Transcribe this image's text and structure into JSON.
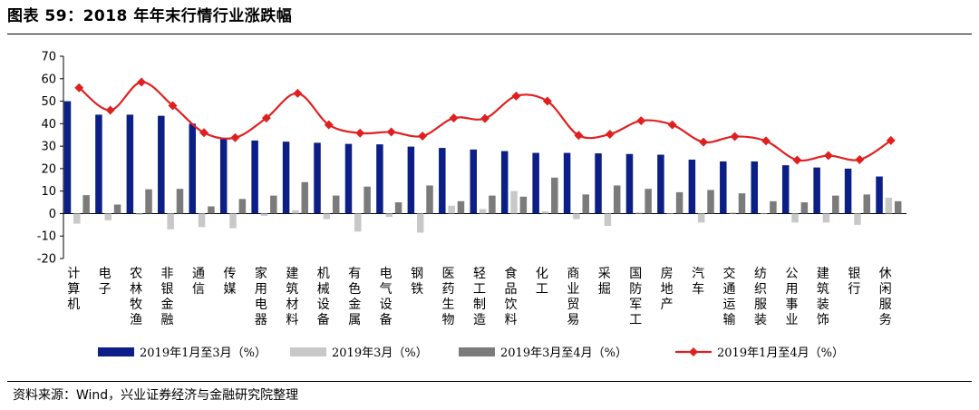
{
  "title": "图表 59：2018 年年末行情行业涨跌幅",
  "source": "资料来源：Wind，兴业证券经济与金融研究院整理",
  "colors": {
    "series1": "#0b1f86",
    "series2": "#c8c8c8",
    "series3": "#7b7b7b",
    "line": "#e02020",
    "axis": "#000000"
  },
  "chart_data": {
    "type": "bar",
    "ylim": [
      -20,
      70
    ],
    "yticks": [
      -20,
      -10,
      0,
      10,
      20,
      30,
      40,
      50,
      60,
      70
    ],
    "categories": [
      "计算机",
      "电子",
      "农林牧渔",
      "非银金融",
      "通信",
      "传媒",
      "家用电器",
      "建筑材料",
      "机械设备",
      "有色金属",
      "电气设备",
      "钢铁",
      "医药生物",
      "轻工制造",
      "食品饮料",
      "化工",
      "商业贸易",
      "采掘",
      "国防军工",
      "房地产",
      "汽车",
      "交通运输",
      "纺织服装",
      "公用事业",
      "建筑装饰",
      "银行",
      "休闲服务"
    ],
    "series": [
      {
        "name": "2019年1月至3月（%）",
        "kind": "bar",
        "color_key": "series1",
        "values": [
          50.0,
          44.0,
          44.0,
          43.5,
          40.0,
          33.5,
          32.5,
          32.0,
          31.5,
          31.0,
          30.8,
          29.8,
          29.2,
          28.5,
          27.8,
          27.0,
          27.0,
          26.8,
          26.5,
          26.2,
          24.0,
          23.2,
          23.2,
          21.5,
          20.5,
          20.0,
          16.5
        ]
      },
      {
        "name": "2019年3月（%）",
        "kind": "bar",
        "color_key": "series2",
        "values": [
          -4.5,
          -3.0,
          -0.5,
          -7.0,
          -6.0,
          -6.5,
          -1.0,
          1.5,
          -2.5,
          -8.0,
          -1.5,
          -8.5,
          3.5,
          2.0,
          10.0,
          1.0,
          -2.5,
          -5.5,
          0.5,
          0.0,
          -4.0,
          0.5,
          0.0,
          -4.0,
          -4.0,
          -5.0,
          7.0
        ]
      },
      {
        "name": "2019年3月至4月（%）",
        "kind": "bar",
        "color_key": "series3",
        "values": [
          8.2,
          4.0,
          10.8,
          11.0,
          3.2,
          6.5,
          8.0,
          14.0,
          8.0,
          12.0,
          5.0,
          12.5,
          5.5,
          8.0,
          7.5,
          16.0,
          8.5,
          12.5,
          11.0,
          9.5,
          10.5,
          9.0,
          5.5,
          5.0,
          8.0,
          8.5,
          5.5
        ]
      },
      {
        "name": "2019年1月至4月（%）",
        "kind": "line",
        "color_key": "line",
        "values": [
          56.0,
          46.0,
          58.5,
          48.0,
          36.0,
          33.8,
          42.5,
          53.5,
          39.5,
          35.8,
          36.3,
          34.5,
          42.5,
          42.3,
          52.3,
          50.0,
          34.8,
          35.3,
          41.3,
          39.5,
          31.8,
          34.3,
          32.3,
          23.8,
          25.8,
          24.0,
          32.5
        ]
      }
    ],
    "legend": "bottom",
    "grid": false
  }
}
